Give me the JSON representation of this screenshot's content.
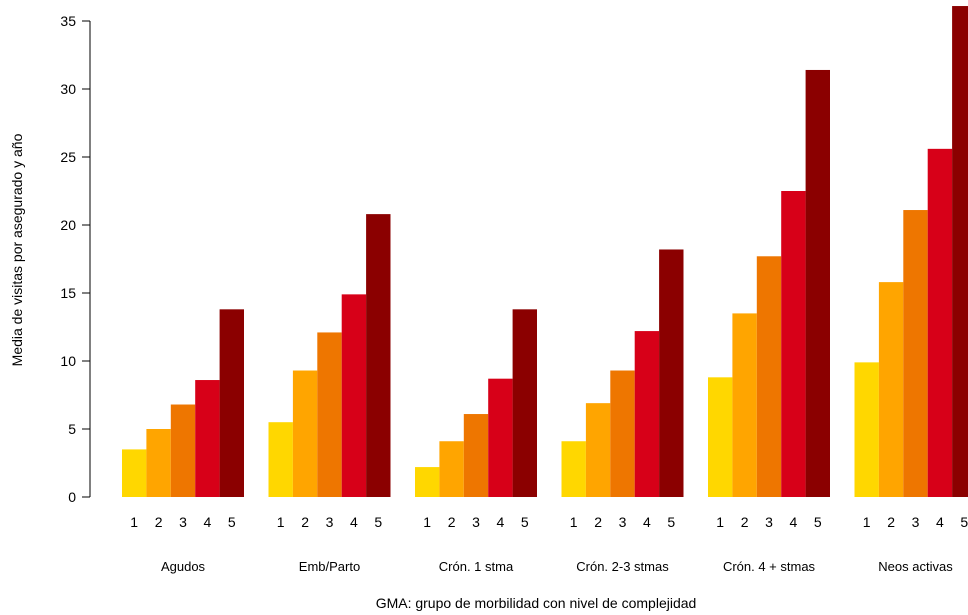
{
  "chart_data": {
    "type": "bar",
    "xlabel": "GMA: grupo de morbilidad con nivel de complejidad",
    "ylabel": "Media de visitas por asegurado y año",
    "ylim": [
      0,
      36
    ],
    "y_ticks": [
      "0",
      "5",
      "10",
      "15",
      "20",
      "25",
      "30",
      "35"
    ],
    "grid": false,
    "legend": "none",
    "levels": [
      "1",
      "2",
      "3",
      "4",
      "5"
    ],
    "colors": [
      "#FFD700",
      "#FFA500",
      "#EE7600",
      "#D70018",
      "#8B0000"
    ],
    "groups": [
      {
        "name": "Agudos",
        "values": [
          3.5,
          5.0,
          6.8,
          8.6,
          13.8
        ]
      },
      {
        "name": "Emb/Parto",
        "values": [
          5.5,
          9.3,
          12.1,
          14.9,
          20.8
        ]
      },
      {
        "name": "Crón. 1 stma",
        "values": [
          2.2,
          4.1,
          6.1,
          8.7,
          13.8
        ]
      },
      {
        "name": "Crón. 2-3 stmas",
        "values": [
          4.1,
          6.9,
          9.3,
          12.2,
          18.2
        ]
      },
      {
        "name": "Crón. 4 + stmas",
        "values": [
          8.8,
          13.5,
          17.7,
          22.5,
          31.4
        ]
      },
      {
        "name": "Neos activas",
        "values": [
          9.9,
          15.8,
          21.1,
          25.6,
          36.1
        ]
      }
    ]
  }
}
